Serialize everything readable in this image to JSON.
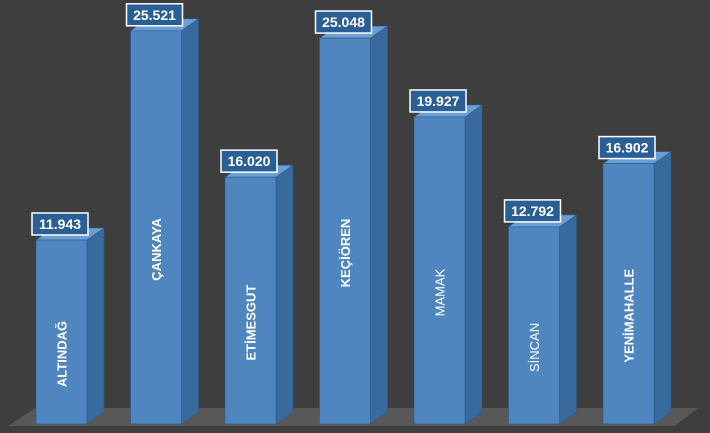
{
  "chart_data": {
    "type": "bar",
    "style": "3d-column",
    "title": "",
    "xlabel": "",
    "ylabel": "",
    "categories": [
      "ALTINDAĞ",
      "ÇANKAYA",
      "ETİMESGUT",
      "KEÇİÖREN",
      "MAMAK",
      "SİNCAN",
      "YENİMAHALLE"
    ],
    "values": [
      11943,
      25521,
      16020,
      25048,
      19927,
      12792,
      16902
    ],
    "value_labels": [
      "11.943",
      "25.521",
      "16.020",
      "25.048",
      "19.927",
      "12.792",
      "16.902"
    ],
    "bold_categories": [
      true,
      true,
      true,
      true,
      false,
      false,
      true
    ],
    "ylim": [
      0,
      27000
    ],
    "grid": false,
    "legend": "none"
  },
  "colors": {
    "background": "#3e3e3e",
    "floor": "#585858",
    "bar_front": "#4f86c0",
    "bar_side": "#386a9d",
    "bar_top": "#6a9fd6",
    "bar_edge": "#2e5a86",
    "label_box_fill": "#2a5f95",
    "label_box_border": "#ffffff",
    "text": "#ffffff"
  }
}
